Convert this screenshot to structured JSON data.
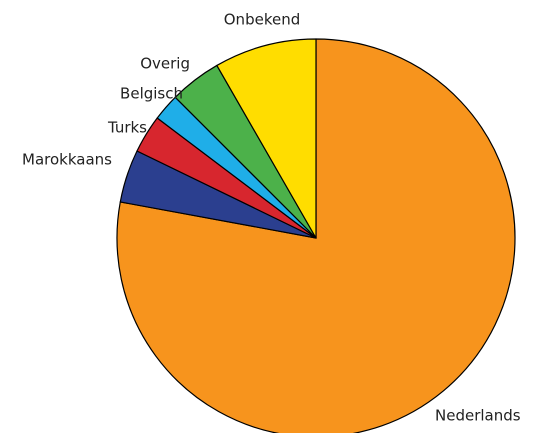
{
  "chart_data": {
    "type": "pie",
    "categories": [
      "Nederlands",
      "Marokkaans",
      "Turks",
      "Belgisch",
      "Overig",
      "Onbekend"
    ],
    "values": [
      77.9,
      4.3,
      3.1,
      2.2,
      4.2,
      8.3
    ],
    "colors": [
      "#f7941d",
      "#2b3f8f",
      "#d7262e",
      "#1faee8",
      "#4cb14a",
      "#ffdd00"
    ],
    "start_angle": 0,
    "direction": "clockwise"
  }
}
